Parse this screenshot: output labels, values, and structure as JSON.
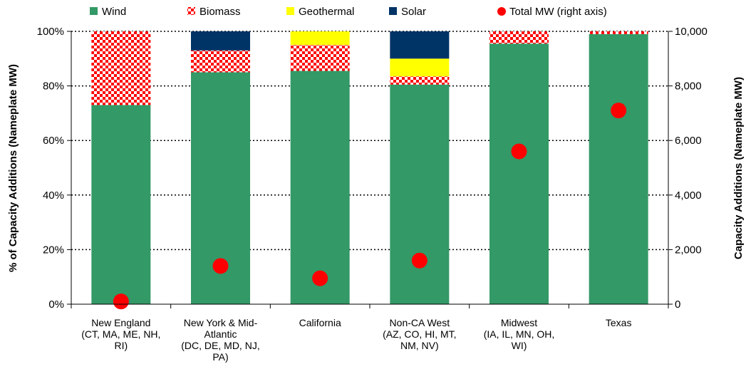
{
  "chart_data": {
    "type": "bar",
    "stacked": true,
    "percent_stacked": true,
    "categories": [
      [
        "New England",
        "(CT, MA, ME, NH,",
        "RI)"
      ],
      [
        "New York & Mid-",
        "Atlantic",
        "(DC, DE, MD, NJ,",
        "PA)"
      ],
      [
        "California"
      ],
      [
        "Non-CA West",
        "(AZ, CO, HI, MT,",
        "NM, NV)"
      ],
      [
        "Midwest",
        "(IA, IL, MN, OH,",
        "WI)"
      ],
      [
        "Texas"
      ]
    ],
    "series": [
      {
        "name": "Wind",
        "color": "#339966",
        "pattern": "solid",
        "values": [
          73,
          85,
          85.5,
          80.5,
          95.5,
          99
        ]
      },
      {
        "name": "Biomass",
        "color": "#ff0000",
        "pattern": "checker",
        "values": [
          27,
          8,
          9.5,
          3,
          4.5,
          1
        ]
      },
      {
        "name": "Geothermal",
        "color": "#ffff00",
        "pattern": "solid",
        "values": [
          0,
          0,
          5,
          6.5,
          0,
          0
        ]
      },
      {
        "name": "Solar",
        "color": "#003366",
        "pattern": "solid",
        "values": [
          0,
          7,
          0,
          10,
          0,
          0
        ]
      }
    ],
    "right_series": {
      "name": "Total MW (right axis)",
      "color": "#ff0000",
      "values": [
        100,
        1400,
        950,
        1600,
        5600,
        7100
      ]
    },
    "ylabel": "% of Capacity Additions (Nameplate MW)",
    "y2label": "Capacity Additions (Nameplate MW)",
    "ylim": [
      0,
      100
    ],
    "y2lim": [
      0,
      10000
    ],
    "yticks": [
      "0%",
      "20%",
      "40%",
      "60%",
      "80%",
      "100%"
    ],
    "y2ticks": [
      "0",
      "2,000",
      "4,000",
      "6,000",
      "8,000",
      "10,000"
    ],
    "grid": "horizontal-dotted",
    "legend": "top"
  }
}
